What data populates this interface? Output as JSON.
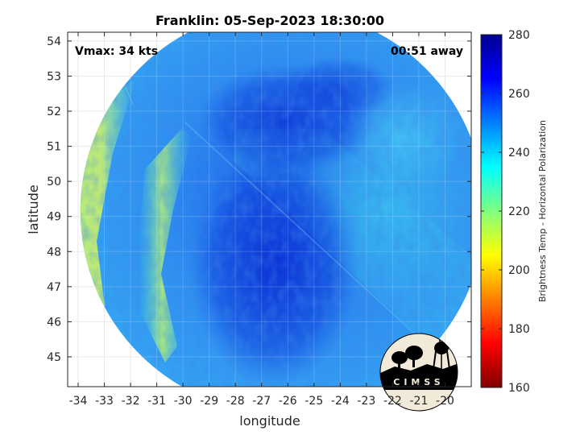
{
  "chart_data": {
    "type": "heatmap",
    "title": "Franklin: 05-Sep-2023 18:30:00",
    "xlabel": "longitude",
    "ylabel": "latitude",
    "xlim": [
      -34.4,
      -19.0
    ],
    "ylim": [
      44.15,
      54.25
    ],
    "x_ticks": [
      -34,
      -33,
      -32,
      -31,
      -30,
      -29,
      -28,
      -27,
      -26,
      -25,
      -24,
      -23,
      -22,
      -21,
      -20
    ],
    "y_ticks": [
      45,
      46,
      47,
      48,
      49,
      50,
      51,
      52,
      53,
      54
    ],
    "grid": true,
    "annotations": {
      "vmax": "Vmax: 34 kts",
      "time_away": "00:51 away"
    },
    "colorbar": {
      "label": "Brightness Temp - Horizontal Polarization",
      "range": [
        160,
        280
      ],
      "ticks": [
        160,
        180,
        200,
        220,
        240,
        260,
        280
      ],
      "colormap": "jet",
      "colors": [
        "#800000",
        "#ff0000",
        "#ff8000",
        "#ffff00",
        "#80ff80",
        "#00ffff",
        "#0080ff",
        "#0000ff",
        "#00008f"
      ]
    },
    "swath": {
      "center": [
        -26.2,
        49.15
      ],
      "shape": "circle",
      "typical_value": 252,
      "features": [
        {
          "description": "warm band",
          "lon_range": [
            -34.2,
            -32.4
          ],
          "value": 222
        },
        {
          "description": "warm band",
          "lon_range": [
            -31.2,
            -30.2
          ],
          "value": 226
        },
        {
          "description": "cold core",
          "lon_range": [
            -28,
            -24
          ],
          "lat_range": [
            44.5,
            53
          ],
          "value": 264
        },
        {
          "description": "lighter area",
          "lon_range": [
            -25,
            -20
          ],
          "lat_range": [
            47,
            51
          ],
          "value": 240
        }
      ]
    },
    "logo_text": "CIMSS"
  }
}
